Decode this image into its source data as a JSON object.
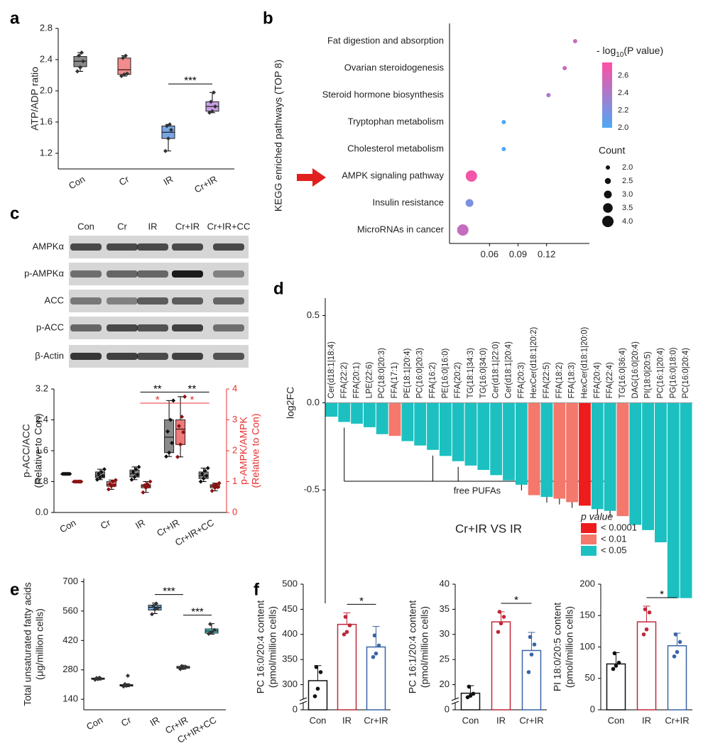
{
  "chart_data": [
    {
      "panel": "a",
      "type": "box",
      "ylabel": [
        "ATP/ADP ratio"
      ],
      "categories": [
        "Con",
        "Cr",
        "IR",
        "Cr+IR"
      ],
      "ylim": [
        1.0,
        2.8
      ],
      "yticks": [
        1.2,
        1.6,
        {
          "value": 2.0,
          "label": "2.0"
        },
        2.4,
        2.8
      ],
      "series": [
        {
          "colors": [
            "#8a8a8a",
            "#f28b8b",
            "#79a6e3",
            "#c79ee3"
          ],
          "point_color": "#333333",
          "boxes": [
            {
              "stats": [
                2.25,
                2.31,
                2.38,
                2.44,
                2.49
              ],
              "points": [
                2.25,
                2.3,
                2.38,
                2.45,
                2.49
              ]
            },
            {
              "stats": [
                2.19,
                2.21,
                2.27,
                2.42,
                2.45
              ],
              "points": [
                2.19,
                2.21,
                2.22,
                2.42,
                2.45
              ]
            },
            {
              "stats": [
                1.23,
                1.39,
                1.47,
                1.55,
                1.57
              ],
              "points": [
                1.23,
                1.39,
                1.5,
                1.55,
                1.57
              ]
            },
            {
              "stats": [
                1.72,
                1.74,
                1.8,
                1.86,
                1.98
              ],
              "points": [
                1.72,
                1.74,
                1.8,
                1.86,
                1.98
              ]
            }
          ]
        }
      ],
      "annotations": [
        {
          "text": "***",
          "pair": [
            2,
            3
          ]
        }
      ]
    },
    {
      "panel": "b",
      "type": "dot",
      "ylabel": "KEGG enriched pathways (TOP 8)",
      "categories": [
        "Fat digestion and absorption",
        "Ovarian steroidogenesis",
        "Steroid hormone biosynthesis",
        "Tryptophan metabolism",
        "Cholesterol metabolism",
        "AMPK signaling pathway",
        "Insulin resistance",
        "MicroRNAs in cancer"
      ],
      "values": [
        0.15,
        0.139,
        0.122,
        0.075,
        0.075,
        0.041,
        0.039,
        0.032
      ],
      "count": [
        2,
        2,
        2,
        2,
        2,
        4,
        3,
        4
      ],
      "neglogp": [
        2.5,
        2.5,
        2.4,
        2.0,
        2.0,
        2.7,
        2.2,
        2.5
      ],
      "xlim": [
        0.018,
        0.165
      ],
      "xticks": [
        0.06,
        0.09,
        0.12
      ],
      "colorbar": {
        "title": [
          "- log",
          "10",
          "(P value)"
        ],
        "lim": [
          2.0,
          2.75
        ],
        "colors": [
          "#4ea8f5",
          "#ff4fa3"
        ],
        "ticks": [
          {
            "value": 2.0,
            "label": "2.0"
          },
          2.2,
          2.4,
          2.6
        ]
      },
      "size_legend": {
        "title": "Count",
        "values": [
          {
            "value": 2.0,
            "label": "2.0"
          },
          2.5,
          {
            "value": 3.0,
            "label": "3.0"
          },
          3.5,
          {
            "value": 4.0,
            "label": "4.0"
          }
        ]
      }
    },
    {
      "panel": "c",
      "type": "blot",
      "lanes": [
        "Con",
        "Cr",
        "IR",
        "Cr+IR",
        "Cr+IR+CC"
      ],
      "rows": [
        "AMPKα",
        "p-AMPKα",
        "ACC",
        "p-ACC",
        "β-Actin"
      ]
    },
    {
      "type": "box",
      "ylabel": [
        "p-ACC/ACC",
        "(Relative to Con)"
      ],
      "y2label": [
        "p-AMPK/AMPK",
        "(Relative to Con)"
      ],
      "y2color": "#e8302f",
      "categories": [
        "Con",
        "Cr",
        "IR",
        "Cr+IR",
        "Cr+IR+CC"
      ],
      "ylim": [
        0,
        3.2
      ],
      "yticks": [
        {
          "value": 0,
          "label": "0.0"
        },
        0.8,
        1.6,
        2.4,
        3.2
      ],
      "y2lim": [
        0,
        4
      ],
      "y2ticks": [
        0,
        1,
        2,
        3,
        4
      ],
      "series": [
        {
          "color": "#8a8a8a",
          "point_color": "#111111",
          "boxes": [
            {
              "stats": [
                1,
                1,
                1,
                1,
                1
              ],
              "points": [
                1,
                1,
                1,
                1,
                1,
                1
              ]
            },
            {
              "stats": [
                0.85,
                0.9,
                0.95,
                1.05,
                1.12
              ],
              "points": [
                0.85,
                0.9,
                0.95,
                1.0,
                1.05,
                1.12
              ]
            },
            {
              "stats": [
                0.85,
                0.92,
                1.0,
                1.1,
                1.18
              ],
              "points": [
                0.85,
                0.92,
                0.98,
                1.05,
                1.12,
                1.18
              ]
            },
            {
              "stats": [
                1.45,
                1.55,
                1.95,
                2.4,
                2.9
              ],
              "points": [
                1.45,
                1.55,
                1.8,
                2.1,
                2.4,
                2.9
              ]
            },
            {
              "stats": [
                0.8,
                0.88,
                0.95,
                1.05,
                1.15
              ],
              "points": [
                0.8,
                0.88,
                0.95,
                1.0,
                1.08,
                1.15
              ]
            }
          ]
        },
        {
          "color": "#f07a7a",
          "point_color": "#8a1010",
          "axis": "y2",
          "boxes": [
            {
              "stats": [
                1,
                1,
                1,
                1,
                1
              ],
              "points": [
                1,
                1,
                1,
                1,
                1,
                1
              ]
            },
            {
              "stats": [
                0.75,
                0.85,
                0.9,
                1.0,
                1.05
              ],
              "points": [
                0.75,
                0.85,
                0.88,
                0.92,
                1.0,
                1.05
              ]
            },
            {
              "stats": [
                0.65,
                0.8,
                0.85,
                0.9,
                1.0
              ],
              "points": [
                0.65,
                0.8,
                0.85,
                0.88,
                0.92,
                1.0
              ]
            },
            {
              "stats": [
                1.8,
                2.2,
                2.7,
                3.0,
                3.75
              ],
              "points": [
                1.8,
                2.2,
                2.6,
                2.8,
                3.1,
                3.75
              ]
            },
            {
              "stats": [
                0.7,
                0.8,
                0.85,
                0.9,
                0.95
              ],
              "points": [
                0.7,
                0.8,
                0.82,
                0.88,
                0.9,
                0.95
              ]
            }
          ]
        }
      ],
      "annotations": [
        {
          "text": "**",
          "pair": [
            2,
            3
          ]
        },
        {
          "text": "**",
          "pair": [
            3,
            4
          ]
        },
        {
          "text": "*",
          "pair": [
            2,
            3
          ],
          "series": 1,
          "color": "#e8302f"
        },
        {
          "text": "*",
          "pair": [
            3,
            4
          ],
          "series": 1,
          "color": "#e8302f"
        }
      ]
    },
    {
      "panel": "d",
      "type": "bar",
      "ylabel": "log2FC",
      "subtitle": "Cr+IR VS IR",
      "categories": [
        "Cer(d18:1|18:4)",
        "FFA(22:2)",
        "FFA(20:1)",
        "LPE(22:6)",
        "PC(18:0|20:3)",
        "FFA(17:1)",
        "PE(18:1|20:4)",
        "PC(16:0|20:3)",
        "FFA(16:2)",
        "PE(16:0|16:0)",
        "FFA(20:2)",
        "TG(18:1|34:3)",
        "TG(16:0|34:0)",
        "Cer(d18:1|22:0)",
        "Cer(d18:1|20:4)",
        "FFA(20:3)",
        "HexCer(d18:1|20:2)",
        "FFA(22:5)",
        "FFA(18:2)",
        "FFA(18:3)",
        "HexCer(d18:1|20:0)",
        "FFA(20:4)",
        "FFA(22:4)",
        "TG(16:0|36:4)",
        "DAG(16:0|20:4)",
        "PI(18:0|20:5)",
        "PC(16:1|20:4)",
        "PG(16:0|18:0)",
        "PC(16:0|20:4)"
      ],
      "values": [
        -0.08,
        -0.11,
        -0.12,
        -0.14,
        -0.18,
        -0.19,
        -0.22,
        -0.245,
        -0.27,
        -0.305,
        -0.335,
        -0.36,
        -0.385,
        -0.415,
        -0.445,
        -0.47,
        -0.53,
        -0.54,
        -0.55,
        -0.57,
        -0.59,
        -0.61,
        -0.62,
        -0.65,
        -0.7,
        -0.73,
        -0.8,
        -1.12,
        -1.12
      ],
      "p_class": [
        2,
        2,
        2,
        2,
        2,
        1,
        2,
        2,
        2,
        2,
        2,
        2,
        2,
        2,
        2,
        2,
        1,
        2,
        1,
        1,
        0,
        2,
        2,
        1,
        2,
        2,
        2,
        2,
        2
      ],
      "legend": {
        "title": "p value",
        "entries": [
          {
            "label": "< 0.0001",
            "color": "#ee1c1c"
          },
          {
            "label": "< 0.01",
            "color": "#f4786c"
          },
          {
            "label": "< 0.05",
            "color": "#1cc0c0"
          }
        ]
      },
      "bracket": {
        "label": "free PUFAs",
        "bars": [
          1,
          8,
          10,
          15,
          17,
          18,
          19,
          21,
          22
        ]
      },
      "ylim": [
        -1.15,
        0.6
      ],
      "yticks": [
        0.5,
        {
          "value": 0,
          "label": "0.0"
        },
        -0.5
      ]
    },
    {
      "panel": "e",
      "type": "box",
      "ylabel": [
        "Total unsaturated fatty acids",
        "(μg/million cells)"
      ],
      "categories": [
        "Con",
        "Cr",
        "IR",
        "Cr+IR",
        "Cr+IR+CC"
      ],
      "ylim": [
        90,
        715
      ],
      "yticks": [
        140,
        280,
        420,
        560,
        700
      ],
      "series": [
        {
          "colors": [
            "#8c8c8c",
            "#f29a9a",
            "#6ea6e0",
            "#b7a6e3",
            "#4cc7c7"
          ],
          "point_color": "#333333",
          "boxes": [
            {
              "stats": [
                232,
                235,
                238,
                241,
                244
              ],
              "points": [
                233,
                236,
                238,
                241,
                243
              ]
            },
            {
              "stats": [
                200,
                203,
                206,
                210,
                214
              ],
              "points": [
                201,
                204,
                207,
                212,
                252
              ]
            },
            {
              "stats": [
                548,
                565,
                578,
                588,
                598
              ],
              "points": [
                545,
                568,
                575,
                585,
                596
              ]
            },
            {
              "stats": [
                283,
                288,
                292,
                297,
                302
              ],
              "points": [
                284,
                289,
                293,
                298
              ]
            },
            {
              "stats": [
                450,
                455,
                465,
                475,
                500
              ],
              "points": [
                452,
                460,
                470,
                498
              ]
            }
          ]
        }
      ],
      "annotations": [
        {
          "text": "***",
          "pair": [
            2,
            3
          ]
        },
        {
          "text": "***",
          "pair": [
            3,
            4
          ]
        }
      ]
    },
    {
      "panel": "f",
      "type": "bar_err",
      "ylabel": [
        "PC 16:0/20:4 content",
        "(pmol/million cells)"
      ],
      "categories": [
        "Con",
        "IR",
        "Cr+IR"
      ],
      "colors": [
        "#111111",
        "#c0283a",
        "#3a64a8"
      ],
      "values": [
        308,
        420,
        375
      ],
      "errors": [
        30,
        23,
        41
      ],
      "points": [
        [
          277,
          292,
          325,
          335
        ],
        [
          400,
          405,
          418,
          435
        ],
        [
          355,
          362,
          378,
          398
        ]
      ],
      "ylim": [
        250,
        500
      ],
      "axis_break": true,
      "yticks": [
        0,
        300,
        350,
        400,
        450,
        500
      ],
      "annotations": [
        {
          "text": "*",
          "pair": [
            1,
            2
          ]
        }
      ]
    },
    {
      "type": "bar_err",
      "ylabel": [
        "PC 16:1/20:4 content",
        "(pmol/million cells)"
      ],
      "categories": [
        "Con",
        "IR",
        "Cr+IR"
      ],
      "colors": [
        "#111111",
        "#c0283a",
        "#3a64a8"
      ],
      "values": [
        18.3,
        32.5,
        26.8
      ],
      "errors": [
        1.5,
        2,
        3.6
      ],
      "points": [
        [
          17.5,
          17.8,
          18.2,
          19.6
        ],
        [
          30.5,
          32.2,
          33.5,
          34.5
        ],
        [
          22.5,
          26,
          28,
          29.5
        ]
      ],
      "ylim": [
        15,
        40
      ],
      "axis_break": true,
      "yticks": [
        0,
        20,
        25,
        30,
        35,
        40
      ],
      "annotations": [
        {
          "text": "*",
          "pair": [
            1,
            2
          ]
        }
      ]
    },
    {
      "type": "bar_err",
      "ylabel": [
        "PI 18:0/20:5 content",
        "(pmol/million cells)"
      ],
      "categories": [
        "Con",
        "IR",
        "Cr+IR"
      ],
      "colors": [
        "#111111",
        "#c0283a",
        "#3a64a8"
      ],
      "values": [
        73,
        140,
        102
      ],
      "errors": [
        18,
        25,
        20
      ],
      "points": [
        [
          65,
          70,
          75,
          90
        ],
        [
          120,
          128,
          155,
          160
        ],
        [
          85,
          92,
          108,
          120
        ]
      ],
      "ylim": [
        0,
        200
      ],
      "yticks": [
        0,
        50,
        100,
        150,
        200
      ],
      "annotations": [
        {
          "text": "*",
          "pair": [
            1,
            2
          ]
        }
      ]
    }
  ]
}
